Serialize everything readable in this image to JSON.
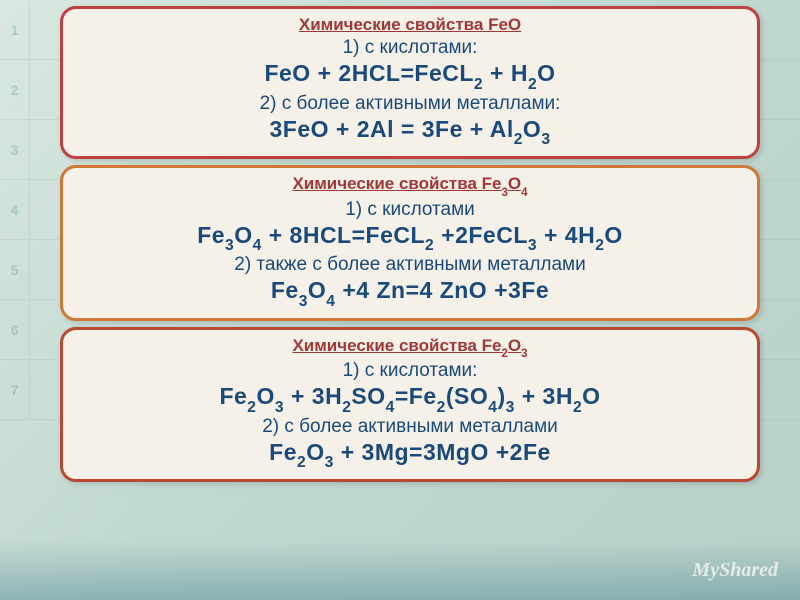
{
  "background": {
    "row_numbers": [
      "1",
      "2",
      "3",
      "4",
      "5",
      "6",
      "7"
    ]
  },
  "cards": [
    {
      "title": "Химические свойства FeO",
      "line1_label": "1)    с кислотами:",
      "eq1": "FeO + 2HCL=FeCL₂ + H₂O",
      "line2_label": "2) с более активными металлами:",
      "eq2": "3FeO + 2Al = 3Fe + Al₂O₃",
      "border_color": "#c04040"
    },
    {
      "title": "Химические свойства Fe₃O₄",
      "line1_label": "1)  с кислотами",
      "eq1": "Fe₃O₄ + 8HCL=FeCL₂ +2FeCL₃ + 4H₂O",
      "line2_label": "2) также с более активными металлами",
      "eq2": "Fe₃O₄ +4 Zn=4 ZnO +3Fe",
      "border_color": "#d07838"
    },
    {
      "title": "Химические свойства Fe₂O₃",
      "line1_label": "1)  с кислотами:",
      "eq1": "Fe₂O₃ + 3H₂SO₄=Fe₂(SO₄)₃ + 3H₂O",
      "line2_label": "2)  с более активными металлами",
      "eq2": "Fe₂O₃ + 3Mg=3MgO +2Fe",
      "border_color": "#b84830"
    }
  ],
  "watermark": "MyShared",
  "styling": {
    "card_background": "#f5f0e8",
    "card_border_radius": 16,
    "card_border_width": 3,
    "title_color": "#a03838",
    "title_fontsize": 17,
    "text_color": "#1a4a7a",
    "label_fontsize": 19,
    "equation_fontsize": 23,
    "equation_weight": "bold",
    "page_background": "linear-gradient #d8e8e0 → #b8d0c8",
    "watermark_color": "#ffffff"
  }
}
